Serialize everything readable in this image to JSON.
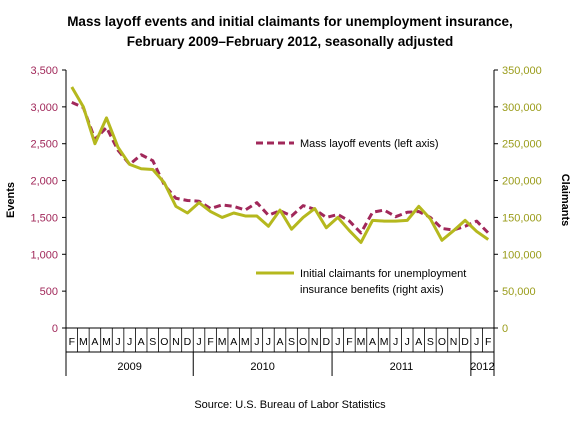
{
  "title_line1": "Mass layoff events and initial claimants for unemployment insurance,",
  "title_line2": "February 2009–February 2012, seasonally adjusted",
  "source": "Source: U.S. Bureau of Labor Statistics",
  "colors": {
    "events": "#A1285A",
    "claimants": "#B5B81E",
    "left_axis": "#A1285A",
    "right_axis": "#9A9C1A",
    "frame": "#000000"
  },
  "chart_data": {
    "type": "line",
    "title": "Mass layoff events and initial claimants for unemployment insurance, February 2009–February 2012, seasonally adjusted",
    "x": [
      "F",
      "M",
      "A",
      "M",
      "J",
      "J",
      "A",
      "S",
      "O",
      "N",
      "D",
      "J",
      "F",
      "M",
      "A",
      "M",
      "J",
      "J",
      "A",
      "S",
      "O",
      "N",
      "D",
      "J",
      "F",
      "M",
      "A",
      "M",
      "J",
      "J",
      "A",
      "S",
      "O",
      "N",
      "D",
      "J",
      "F"
    ],
    "year_labels": [
      "2009",
      "2010",
      "2011",
      "2012"
    ],
    "ylabel_left": "Events",
    "ylabel_right": "Claimants",
    "ylim_left": [
      0,
      3500
    ],
    "ylim_right": [
      0,
      350000
    ],
    "yticks_left": [
      "0",
      "500",
      "1,000",
      "1,500",
      "2,000",
      "2,500",
      "3,000",
      "3,500"
    ],
    "yticks_right": [
      "0",
      "50,000",
      "100,000",
      "150,000",
      "200,000",
      "250,000",
      "300,000",
      "350,000"
    ],
    "legend_placement": "right, inside plot",
    "grid": false,
    "series": [
      {
        "name": "Mass layoff events (left axis)",
        "axis": "left",
        "style": "dashed",
        "values": [
          3060,
          2990,
          2560,
          2720,
          2410,
          2220,
          2350,
          2270,
          1940,
          1760,
          1730,
          1720,
          1620,
          1670,
          1650,
          1600,
          1700,
          1530,
          1590,
          1520,
          1660,
          1610,
          1500,
          1540,
          1450,
          1290,
          1570,
          1600,
          1510,
          1570,
          1580,
          1500,
          1350,
          1330,
          1380,
          1450,
          1290
        ]
      },
      {
        "name": "Initial claimants for unemployment insurance benefits (right axis)",
        "axis": "right",
        "style": "solid",
        "values": [
          327000,
          300000,
          250000,
          285000,
          245000,
          222000,
          216000,
          215000,
          197000,
          165000,
          156000,
          170000,
          158000,
          150000,
          156000,
          152000,
          152000,
          138000,
          160000,
          134000,
          150000,
          162000,
          136000,
          150000,
          132000,
          116000,
          146000,
          145000,
          145000,
          146000,
          165000,
          148000,
          119000,
          132000,
          146000,
          131000,
          120000
        ]
      }
    ]
  }
}
